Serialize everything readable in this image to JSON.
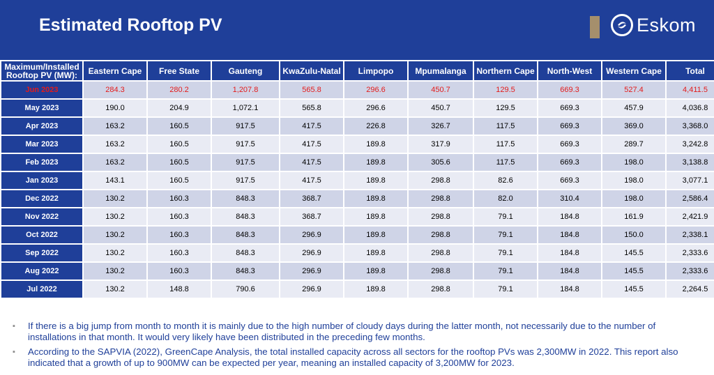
{
  "title": "Estimated Rooftop PV",
  "logo": {
    "text": "Eskom",
    "icon": "eskom-logo-icon"
  },
  "colors": {
    "header": "#1f3f99",
    "highlight": "#e31b1b",
    "row_dark": "#cfd4e7",
    "row_light": "#e9ebf4",
    "accent_bar": "#a58f6c"
  },
  "table": {
    "headers": [
      "Maximum/Installed Rooftop PV (MW):",
      "Eastern Cape",
      "Free State",
      "Gauteng",
      "KwaZulu-Natal",
      "Limpopo",
      "Mpumalanga",
      "Northern Cape",
      "North-West",
      "Western Cape",
      "Total"
    ],
    "rows": [
      {
        "label": "Jun 2023",
        "values": [
          "284.3",
          "280.2",
          "1,207.8",
          "565.8",
          "296.6",
          "450.7",
          "129.5",
          "669.3",
          "527.4",
          "4,411.5"
        ]
      },
      {
        "label": "May 2023",
        "values": [
          "190.0",
          "204.9",
          "1,072.1",
          "565.8",
          "296.6",
          "450.7",
          "129.5",
          "669.3",
          "457.9",
          "4,036.8"
        ]
      },
      {
        "label": "Apr 2023",
        "values": [
          "163.2",
          "160.5",
          "917.5",
          "417.5",
          "226.8",
          "326.7",
          "117.5",
          "669.3",
          "369.0",
          "3,368.0"
        ]
      },
      {
        "label": "Mar 2023",
        "values": [
          "163.2",
          "160.5",
          "917.5",
          "417.5",
          "189.8",
          "317.9",
          "117.5",
          "669.3",
          "289.7",
          "3,242.8"
        ]
      },
      {
        "label": "Feb 2023",
        "values": [
          "163.2",
          "160.5",
          "917.5",
          "417.5",
          "189.8",
          "305.6",
          "117.5",
          "669.3",
          "198.0",
          "3,138.8"
        ]
      },
      {
        "label": "Jan 2023",
        "values": [
          "143.1",
          "160.5",
          "917.5",
          "417.5",
          "189.8",
          "298.8",
          "82.6",
          "669.3",
          "198.0",
          "3,077.1"
        ]
      },
      {
        "label": "Dec 2022",
        "values": [
          "130.2",
          "160.3",
          "848.3",
          "368.7",
          "189.8",
          "298.8",
          "82.0",
          "310.4",
          "198.0",
          "2,586.4"
        ]
      },
      {
        "label": "Nov 2022",
        "values": [
          "130.2",
          "160.3",
          "848.3",
          "368.7",
          "189.8",
          "298.8",
          "79.1",
          "184.8",
          "161.9",
          "2,421.9"
        ]
      },
      {
        "label": "Oct 2022",
        "values": [
          "130.2",
          "160.3",
          "848.3",
          "296.9",
          "189.8",
          "298.8",
          "79.1",
          "184.8",
          "150.0",
          "2,338.1"
        ]
      },
      {
        "label": "Sep 2022",
        "values": [
          "130.2",
          "160.3",
          "848.3",
          "296.9",
          "189.8",
          "298.8",
          "79.1",
          "184.8",
          "145.5",
          "2,333.6"
        ]
      },
      {
        "label": "Aug 2022",
        "values": [
          "130.2",
          "160.3",
          "848.3",
          "296.9",
          "189.8",
          "298.8",
          "79.1",
          "184.8",
          "145.5",
          "2,333.6"
        ]
      },
      {
        "label": "Jul 2022",
        "values": [
          "130.2",
          "148.8",
          "790.6",
          "296.9",
          "189.8",
          "298.8",
          "79.1",
          "184.8",
          "145.5",
          "2,264.5"
        ]
      }
    ]
  },
  "notes": [
    "If there is a big jump from month to month it is mainly due to the high number of cloudy days during the latter month, not necessarily due to the number of installations in that month. It would very likely have been distributed in the preceding few months.",
    "According to the SAPVIA (2022), GreenCape Analysis, the total installed capacity across all sectors for the rooftop PVs was 2,300MW in 2022. This report also indicated that a growth of up to 900MW can be expected per year, meaning an installed capacity of 3,200MW for 2023."
  ]
}
